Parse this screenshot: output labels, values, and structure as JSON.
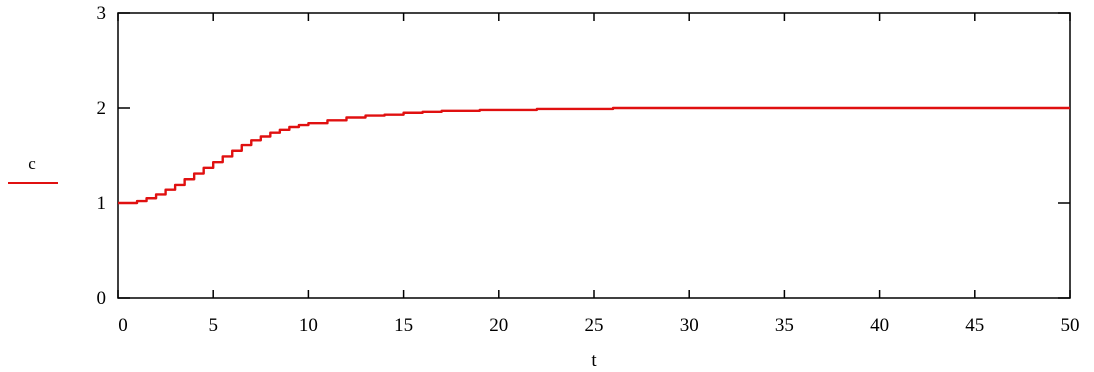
{
  "chart_data": {
    "type": "line",
    "title": "",
    "xlabel": "t",
    "ylabel": "",
    "xlim": [
      0,
      50
    ],
    "ylim": [
      0,
      3
    ],
    "x_ticks": [
      0,
      5,
      10,
      15,
      20,
      25,
      30,
      35,
      40,
      45,
      50
    ],
    "y_ticks": [
      0,
      1,
      2,
      3
    ],
    "x_tick_labels": [
      "0",
      "5",
      "10",
      "15",
      "20",
      "25",
      "30",
      "35",
      "40",
      "45",
      "50"
    ],
    "y_tick_labels": [
      "0",
      "1",
      "2",
      "3"
    ],
    "grid": false,
    "legend": {
      "placement": "left",
      "entries": [
        "c"
      ]
    },
    "colors": {
      "series": "#e01010",
      "axes": "#000000"
    },
    "series": [
      {
        "name": "c",
        "line_style": "solid",
        "x": [
          0,
          0.5,
          1,
          1.5,
          2,
          2.5,
          3,
          3.5,
          4,
          4.5,
          5,
          5.5,
          6,
          6.5,
          7,
          7.5,
          8,
          8.5,
          9,
          9.5,
          10,
          11,
          12,
          13,
          14,
          15,
          16,
          17,
          18,
          19,
          20,
          22,
          24,
          25,
          26,
          28,
          30,
          35,
          40,
          45,
          50
        ],
        "y": [
          1.0,
          1.0,
          1.02,
          1.05,
          1.09,
          1.14,
          1.19,
          1.25,
          1.31,
          1.37,
          1.43,
          1.49,
          1.55,
          1.61,
          1.66,
          1.7,
          1.74,
          1.77,
          1.8,
          1.82,
          1.84,
          1.87,
          1.9,
          1.92,
          1.93,
          1.95,
          1.96,
          1.97,
          1.97,
          1.98,
          1.98,
          1.99,
          1.99,
          1.99,
          2.0,
          2.0,
          2.0,
          2.0,
          2.0,
          2.0,
          2.0
        ]
      }
    ]
  }
}
